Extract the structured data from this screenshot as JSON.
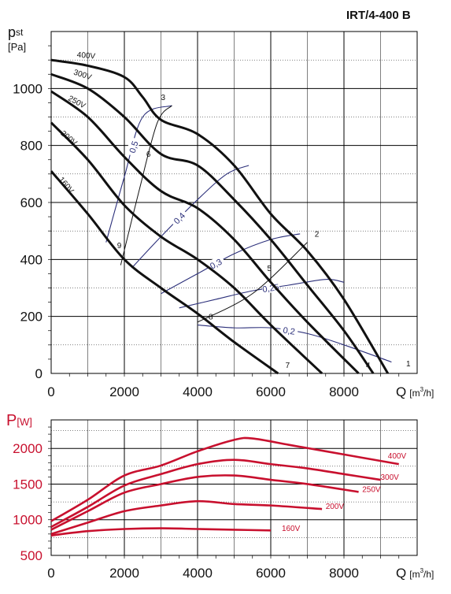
{
  "title": "IRT/4-400 B",
  "chart_data": [
    {
      "type": "line",
      "ylabel_main": "p",
      "ylabel_sub": "st",
      "ylabel_unit": "[Pa]",
      "xlabel": "Q",
      "xunit_pre": "[m",
      "xunit_sup": "3",
      "xunit_post": "/h]",
      "xlim": [
        0,
        10000
      ],
      "ylim": [
        0,
        1200
      ],
      "xticks": [
        "0",
        "2000",
        "4000",
        "6000",
        "8000"
      ],
      "yticks": [
        "0",
        "200",
        "400",
        "600",
        "800",
        "1000"
      ],
      "series": [
        {
          "name": "400V",
          "x": [
            0,
            1000,
            2000,
            2500,
            3000,
            4000,
            5000,
            6000,
            7000,
            8000,
            9200
          ],
          "y": [
            1100,
            1080,
            1040,
            970,
            890,
            840,
            730,
            560,
            430,
            260,
            0
          ]
        },
        {
          "name": "300V",
          "x": [
            0,
            1000,
            2000,
            3000,
            4000,
            5000,
            6000,
            7000,
            8000,
            8800
          ],
          "y": [
            1050,
            1000,
            900,
            770,
            730,
            610,
            470,
            310,
            150,
            0
          ]
        },
        {
          "name": "250V",
          "x": [
            0,
            1000,
            2000,
            3000,
            4000,
            5000,
            6000,
            7000,
            8400
          ],
          "y": [
            990,
            900,
            760,
            640,
            580,
            470,
            320,
            180,
            0
          ]
        },
        {
          "name": "200V",
          "x": [
            0,
            1000,
            2000,
            3000,
            4000,
            5000,
            6000,
            7400
          ],
          "y": [
            880,
            750,
            590,
            480,
            400,
            300,
            170,
            0
          ]
        },
        {
          "name": "160V",
          "x": [
            0,
            1000,
            2000,
            3000,
            4000,
            5000,
            6200
          ],
          "y": [
            710,
            560,
            400,
            300,
            210,
            110,
            0
          ]
        }
      ],
      "efficiency_curves": [
        {
          "label": "0,5",
          "x": [
            1500,
            2000,
            2500,
            3300
          ],
          "y": [
            460,
            690,
            900,
            940
          ]
        },
        {
          "label": "0,4",
          "x": [
            2200,
            3000,
            4000,
            4800,
            5400
          ],
          "y": [
            370,
            480,
            610,
            700,
            730
          ]
        },
        {
          "label": "0,3",
          "x": [
            3000,
            4000,
            5000,
            6000,
            6800
          ],
          "y": [
            280,
            350,
            420,
            470,
            490
          ]
        },
        {
          "label": "0,25",
          "x": [
            3500,
            4500,
            5500,
            6500,
            7500,
            8000
          ],
          "y": [
            230,
            260,
            290,
            310,
            330,
            320
          ]
        },
        {
          "label": "0,2",
          "x": [
            4000,
            5000,
            6000,
            7000,
            8000,
            9300
          ],
          "y": [
            170,
            160,
            160,
            140,
            100,
            40
          ]
        }
      ],
      "system_curves": [
        {
          "x": [
            1900,
            2400,
            2900,
            3300
          ],
          "y": [
            380,
            640,
            880,
            940
          ]
        },
        {
          "x": [
            4000,
            5500,
            7000
          ],
          "y": [
            180,
            280,
            460
          ]
        }
      ],
      "point_labels": [
        {
          "label": "1",
          "x": 9700,
          "y": 25
        },
        {
          "label": "2",
          "x": 7200,
          "y": 480
        },
        {
          "label": "3",
          "x": 3000,
          "y": 960
        },
        {
          "label": "4",
          "x": 8600,
          "y": 20
        },
        {
          "label": "5",
          "x": 5900,
          "y": 360
        },
        {
          "label": "6",
          "x": 2600,
          "y": 760
        },
        {
          "label": "7",
          "x": 6400,
          "y": 20
        },
        {
          "label": "8",
          "x": 4300,
          "y": 190
        },
        {
          "label": "9",
          "x": 1800,
          "y": 440
        }
      ],
      "series_labels": [
        {
          "label": "400V",
          "x": 700,
          "y": 1110,
          "rot": 5
        },
        {
          "label": "300V",
          "x": 600,
          "y": 1050,
          "rot": 18
        },
        {
          "label": "250V",
          "x": 450,
          "y": 960,
          "rot": 28
        },
        {
          "label": "200V",
          "x": 250,
          "y": 840,
          "rot": 40
        },
        {
          "label": "160V",
          "x": 200,
          "y": 680,
          "rot": 50
        }
      ],
      "grid": true
    },
    {
      "type": "line",
      "ylabel_main": "P",
      "ylabel_unit": "[W]",
      "xlabel": "Q",
      "xunit_pre": "[m",
      "xunit_sup": "3",
      "xunit_post": "/h]",
      "xlim": [
        0,
        10000
      ],
      "ylim": [
        500,
        2400
      ],
      "xticks": [
        "0",
        "2000",
        "4000",
        "6000",
        "8000"
      ],
      "yticks": [
        "500",
        "1000",
        "1500",
        "2000"
      ],
      "series": [
        {
          "name": "400V",
          "x": [
            0,
            1000,
            2000,
            3000,
            4000,
            5000,
            5500,
            6500,
            7500,
            8500,
            9500
          ],
          "y": [
            980,
            1280,
            1620,
            1760,
            1960,
            2120,
            2140,
            2050,
            1960,
            1870,
            1780
          ]
        },
        {
          "name": "300V",
          "x": [
            0,
            1000,
            2000,
            3000,
            4000,
            5000,
            6000,
            7000,
            8000,
            9000
          ],
          "y": [
            900,
            1180,
            1480,
            1640,
            1780,
            1840,
            1780,
            1720,
            1640,
            1560
          ]
        },
        {
          "name": "250V",
          "x": [
            0,
            1000,
            2000,
            3000,
            4000,
            5000,
            6000,
            7000,
            8400
          ],
          "y": [
            860,
            1120,
            1380,
            1500,
            1600,
            1620,
            1560,
            1500,
            1390
          ]
        },
        {
          "name": "200V",
          "x": [
            0,
            1000,
            2000,
            3000,
            4000,
            5000,
            6000,
            7400
          ],
          "y": [
            800,
            960,
            1120,
            1200,
            1260,
            1220,
            1200,
            1150
          ]
        },
        {
          "name": "160V",
          "x": [
            0,
            1000,
            2000,
            3000,
            4000,
            5000,
            6000
          ],
          "y": [
            780,
            840,
            870,
            880,
            870,
            860,
            850
          ]
        }
      ],
      "series_labels": [
        {
          "label": "400V",
          "x": 9200,
          "y": 1860
        },
        {
          "label": "300V",
          "x": 9000,
          "y": 1560
        },
        {
          "label": "250V",
          "x": 8500,
          "y": 1390
        },
        {
          "label": "200V",
          "x": 7500,
          "y": 1150
        },
        {
          "label": "160V",
          "x": 6300,
          "y": 840
        }
      ],
      "grid": true
    }
  ],
  "colors": {
    "curve_main": "#111111",
    "efficiency": "#2b2f7a",
    "power": "#c8102e"
  }
}
